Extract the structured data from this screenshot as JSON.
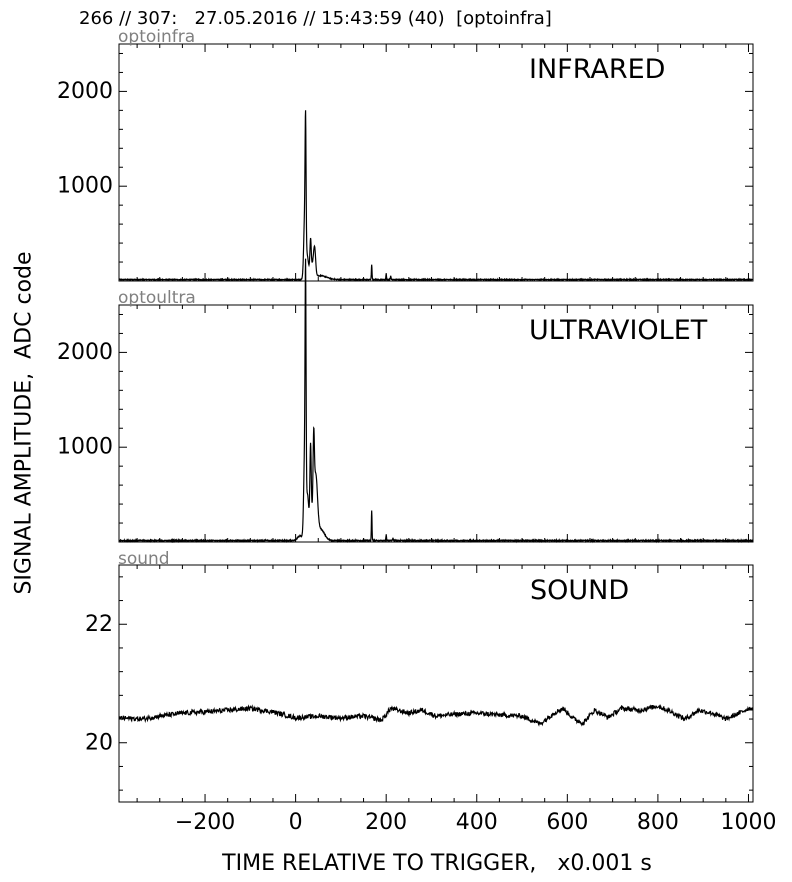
{
  "header": {
    "title": "266 // 307:   27.05.2016 // 15:43:59 (40)  [optoinfra]"
  },
  "ylabel": "SIGNAL AMPLITUDE,  ADC code",
  "xlabel": "TIME RELATIVE TO TRIGGER,   x0.001 s",
  "chart_data": [
    {
      "type": "line",
      "source": "optoinfra",
      "label": "INFRARED",
      "xlim": [
        -390,
        1010
      ],
      "ylim": [
        0,
        2500
      ],
      "yticks": [
        1000,
        2000
      ],
      "yticklabels": [
        "1000",
        "2000"
      ],
      "xticks": [
        -200,
        0,
        200,
        400,
        600,
        800,
        1000
      ],
      "baseline": 15,
      "noise": 4,
      "peaks": [
        {
          "x": 22,
          "y": 1220,
          "w": 1.5
        },
        {
          "x": 20,
          "y": 600,
          "w": 3
        },
        {
          "x": 25,
          "y": 250,
          "w": 5
        },
        {
          "x": 33,
          "y": 330,
          "w": 2
        },
        {
          "x": 42,
          "y": 230,
          "w": 3
        },
        {
          "x": 38,
          "y": 150,
          "w": 6
        },
        {
          "x": 55,
          "y": 40,
          "w": 20
        },
        {
          "x": 168,
          "y": 160,
          "w": 1
        },
        {
          "x": 200,
          "y": 60,
          "w": 1
        },
        {
          "x": 210,
          "y": 40,
          "w": 1
        }
      ]
    },
    {
      "type": "line",
      "source": "optoultra",
      "label": "ULTRAVIOLET",
      "xlim": [
        -390,
        1010
      ],
      "ylim": [
        0,
        2500
      ],
      "yticks": [
        1000,
        2000
      ],
      "yticklabels": [
        "1000",
        "2000"
      ],
      "xticks": [
        -200,
        0,
        200,
        400,
        600,
        800,
        1000
      ],
      "baseline": 15,
      "noise": 5,
      "peaks": [
        {
          "x": 22,
          "y": 2220,
          "w": 1.5
        },
        {
          "x": 20,
          "y": 900,
          "w": 3
        },
        {
          "x": 26,
          "y": 450,
          "w": 4
        },
        {
          "x": 33,
          "y": 800,
          "w": 2
        },
        {
          "x": 40,
          "y": 700,
          "w": 2
        },
        {
          "x": 45,
          "y": 500,
          "w": 5
        },
        {
          "x": 38,
          "y": 300,
          "w": 8
        },
        {
          "x": 55,
          "y": 120,
          "w": 12
        },
        {
          "x": 10,
          "y": 50,
          "w": 8
        },
        {
          "x": 168,
          "y": 320,
          "w": 1
        },
        {
          "x": 200,
          "y": 60,
          "w": 1
        },
        {
          "x": 215,
          "y": 30,
          "w": 1
        }
      ]
    },
    {
      "type": "line",
      "source": "sound",
      "label": "SOUND",
      "xlim": [
        -390,
        1010
      ],
      "ylim": [
        19,
        23
      ],
      "yticks": [
        20,
        22
      ],
      "yticklabels": [
        "20",
        "22"
      ],
      "xticks": [
        -200,
        0,
        200,
        400,
        600,
        800,
        1000
      ],
      "xticklabels": [
        "−200",
        "0",
        "200",
        "400",
        "600",
        "800",
        "1000"
      ],
      "noise": 0.04,
      "points": [
        [
          -390,
          20.42
        ],
        [
          -340,
          20.4
        ],
        [
          -300,
          20.45
        ],
        [
          -250,
          20.5
        ],
        [
          -200,
          20.52
        ],
        [
          -150,
          20.55
        ],
        [
          -100,
          20.58
        ],
        [
          -50,
          20.52
        ],
        [
          0,
          20.42
        ],
        [
          50,
          20.45
        ],
        [
          100,
          20.42
        ],
        [
          150,
          20.45
        ],
        [
          190,
          20.38
        ],
        [
          210,
          20.58
        ],
        [
          250,
          20.5
        ],
        [
          280,
          20.55
        ],
        [
          310,
          20.45
        ],
        [
          350,
          20.48
        ],
        [
          400,
          20.5
        ],
        [
          450,
          20.47
        ],
        [
          500,
          20.45
        ],
        [
          540,
          20.32
        ],
        [
          570,
          20.5
        ],
        [
          590,
          20.58
        ],
        [
          615,
          20.4
        ],
        [
          635,
          20.33
        ],
        [
          660,
          20.55
        ],
        [
          690,
          20.43
        ],
        [
          720,
          20.58
        ],
        [
          760,
          20.55
        ],
        [
          800,
          20.62
        ],
        [
          830,
          20.52
        ],
        [
          860,
          20.4
        ],
        [
          890,
          20.55
        ],
        [
          920,
          20.5
        ],
        [
          950,
          20.4
        ],
        [
          980,
          20.5
        ],
        [
          1000,
          20.58
        ]
      ]
    }
  ]
}
